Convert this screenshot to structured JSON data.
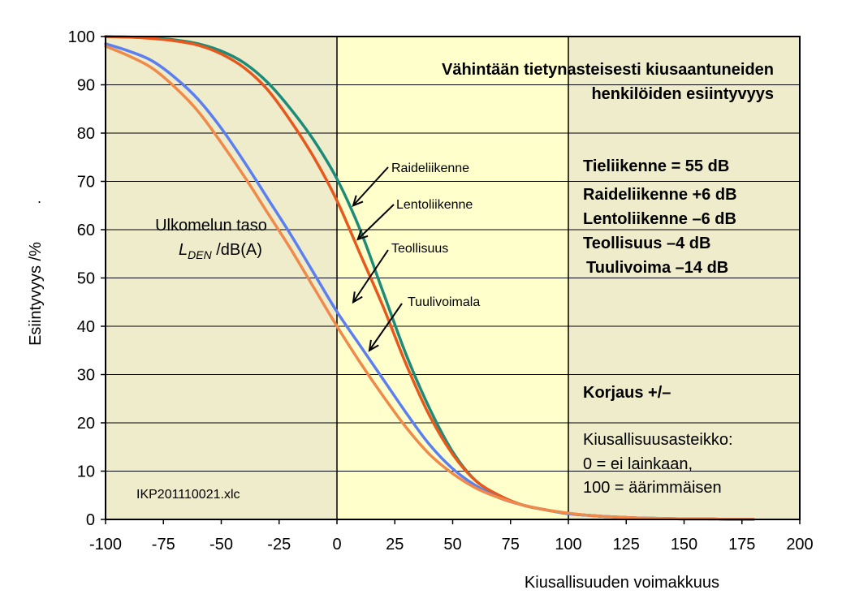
{
  "chart_data": {
    "type": "line",
    "title": "Vähintään tietynasteisesti kiusaantuneiden henkilöiden esiintyvyys",
    "title_lines": [
      "Vähintään tietynasteisesti kiusaantuneiden",
      "henkilöiden esiintyvyys"
    ],
    "xlabel": "Kiusallisuuden voimakkuus",
    "ylabel": "Esiintyvyys /%",
    "xlim": [
      -100,
      200
    ],
    "ylim": [
      0,
      100
    ],
    "x_ticks": [
      -100,
      -75,
      -50,
      -25,
      0,
      25,
      50,
      75,
      100,
      125,
      150,
      175,
      200
    ],
    "y_ticks": [
      0,
      10,
      20,
      30,
      40,
      50,
      60,
      70,
      80,
      90,
      100
    ],
    "grid": "horizontal",
    "regions": [
      {
        "from": -100,
        "to": 0,
        "color": "#eeeccb"
      },
      {
        "from": 0,
        "to": 100,
        "color": "#ffffcc"
      },
      {
        "from": 100,
        "to": 200,
        "color": "#eeeccb"
      }
    ],
    "x": [
      -100,
      -90,
      -80,
      -70,
      -60,
      -50,
      -40,
      -30,
      -20,
      -10,
      0,
      10,
      20,
      30,
      40,
      50,
      60,
      70,
      80,
      90,
      100,
      110,
      120,
      130,
      140,
      150,
      160,
      170,
      180
    ],
    "series": [
      {
        "name": "Raideliikenne",
        "color": "#1e8a78",
        "values": [
          100,
          99.9,
          99.7,
          99.3,
          98.5,
          97,
          94.5,
          90.5,
          85,
          78.5,
          70.5,
          60,
          47,
          34,
          23,
          14,
          8,
          5,
          3,
          2,
          1.2,
          0.8,
          0.5,
          0.3,
          0.2,
          0.1,
          0.1,
          0,
          0
        ]
      },
      {
        "name": "Lentoliikenne",
        "color": "#e8581c",
        "values": [
          100,
          99.9,
          99.6,
          99.1,
          98.2,
          96.4,
          93.5,
          89,
          82.5,
          75,
          66,
          55,
          44,
          32,
          21.5,
          13.5,
          8,
          5,
          3,
          2,
          1.3,
          0.8,
          0.5,
          0.3,
          0.2,
          0.1,
          0.1,
          0,
          0
        ]
      },
      {
        "name": "Teollisuus",
        "color": "#5b7ff0",
        "values": [
          98.5,
          97,
          95,
          91.5,
          87,
          81,
          74,
          66.5,
          59,
          51,
          43,
          36,
          29,
          22,
          15.5,
          10.5,
          7,
          4.5,
          3,
          2,
          1.2,
          0.8,
          0.5,
          0.3,
          0.2,
          0.1,
          0.1,
          0,
          0
        ]
      },
      {
        "name": "Tuulivoimala",
        "color": "#f08a4a",
        "values": [
          98,
          96,
          93.5,
          89.5,
          84.5,
          78,
          71,
          63.5,
          56,
          48,
          40,
          32.5,
          25.5,
          19,
          13.5,
          9.5,
          6.5,
          4.5,
          3,
          2,
          1.3,
          0.8,
          0.5,
          0.3,
          0.2,
          0.1,
          0.1,
          0,
          0
        ]
      }
    ],
    "annotations": {
      "series_labels": [
        {
          "text": "Raideliikenne",
          "arrow_to": [
            7,
            65
          ]
        },
        {
          "text": "Lentoliikenne",
          "arrow_to": [
            9,
            58
          ]
        },
        {
          "text": "Teollisuus",
          "arrow_to": [
            7,
            45
          ]
        },
        {
          "text": "Tuulivoimala",
          "arrow_to": [
            14,
            35
          ]
        }
      ],
      "level_label": {
        "line1": "Ulkomelun taso",
        "line2_prefix": "L",
        "line2_sub": "DEN",
        "line2_suffix": " /dB(A)"
      },
      "file_label": "IKP201110021.xlc",
      "corrections": [
        "Tieliikenne = 55 dB",
        "Raideliikenne +6 dB",
        "Lentoliikenne –6 dB",
        "Teollisuus –4 dB",
        "Tuulivoima –14 dB"
      ],
      "correction_header": "Korjaus +/–",
      "scale_lines": [
        "Kiusallisuusasteikko:",
        "0 = ei lainkaan,",
        "100 = äärimmäisen"
      ],
      "stray_mark": "."
    }
  }
}
